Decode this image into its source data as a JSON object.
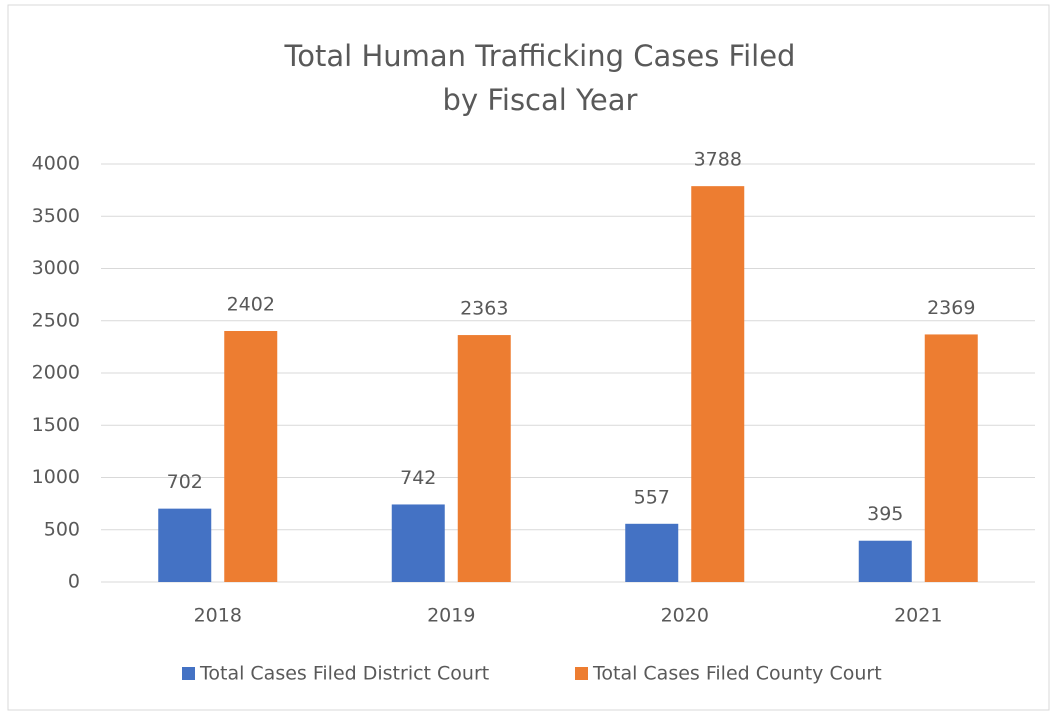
{
  "chart_data": {
    "type": "bar",
    "title": [
      "Total Human Trafficking Cases Filed",
      "by Fiscal Year"
    ],
    "categories": [
      "2018",
      "2019",
      "2020",
      "2021"
    ],
    "series": [
      {
        "name": "Total Cases Filed District Court",
        "color": "#4472c4",
        "values": [
          702,
          742,
          557,
          395
        ]
      },
      {
        "name": "Total Cases Filed County Court",
        "color": "#ed7d31",
        "values": [
          2402,
          2363,
          3788,
          2369
        ]
      }
    ],
    "ylim": [
      0,
      4000
    ],
    "yticks": [
      0,
      500,
      1000,
      1500,
      2000,
      2500,
      3000,
      3500,
      4000
    ],
    "grid": true,
    "legend": "bottom"
  }
}
